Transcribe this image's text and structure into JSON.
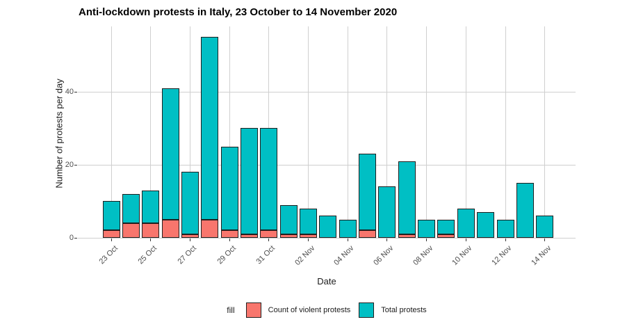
{
  "title": "Anti-lockdown protests in Italy, 23 October to 14 November 2020",
  "axes": {
    "x_label": "Date",
    "y_label": "Number of protests per day"
  },
  "legend": {
    "title": "fill",
    "items": [
      {
        "label": "Count of violent protests",
        "color": "#F8766D"
      },
      {
        "label": "Total protests",
        "color": "#00BFC4"
      }
    ]
  },
  "chart_data": {
    "type": "bar",
    "subtype": "stacked-overlay (violent count shown at base of total bar)",
    "title": "Anti-lockdown protests in Italy, 23 October to 14 November 2020",
    "xlabel": "Date",
    "ylabel": "Number of protests per day",
    "ylim": [
      0,
      58
    ],
    "yticks": [
      0,
      20,
      40
    ],
    "grid": "major gridlines only, grey on white",
    "legend_position": "bottom",
    "categories": [
      "23 Oct",
      "24 Oct",
      "25 Oct",
      "26 Oct",
      "27 Oct",
      "28 Oct",
      "29 Oct",
      "30 Oct",
      "31 Oct",
      "01 Nov",
      "02 Nov",
      "03 Nov",
      "04 Nov",
      "05 Nov",
      "06 Nov",
      "07 Nov",
      "08 Nov",
      "09 Nov",
      "10 Nov",
      "11 Nov",
      "12 Nov",
      "13 Nov",
      "14 Nov"
    ],
    "x_tick_labels_shown": [
      "23 Oct",
      "25 Oct",
      "27 Oct",
      "29 Oct",
      "31 Oct",
      "02 Nov",
      "04 Nov",
      "06 Nov",
      "08 Nov",
      "10 Nov",
      "12 Nov",
      "14 Nov"
    ],
    "series": [
      {
        "name": "Total protests",
        "color": "#00BFC4",
        "values": [
          10,
          12,
          13,
          41,
          18,
          55,
          25,
          30,
          30,
          9,
          8,
          6,
          5,
          23,
          14,
          21,
          5,
          5,
          8,
          7,
          5,
          15,
          6
        ]
      },
      {
        "name": "Count of violent protests",
        "color": "#F8766D",
        "values": [
          2,
          4,
          4,
          5,
          1,
          5,
          2,
          1,
          2,
          1,
          1,
          0,
          0,
          2,
          0,
          1,
          0,
          1,
          0,
          0,
          0,
          0,
          0
        ]
      }
    ]
  },
  "colors": {
    "background": "#ffffff",
    "gridline": "#cfcfcf",
    "tick_label_text": "#4d4d4d",
    "axis_title_text": "#1a1a1a",
    "bar_border": "#1f1f1f"
  }
}
